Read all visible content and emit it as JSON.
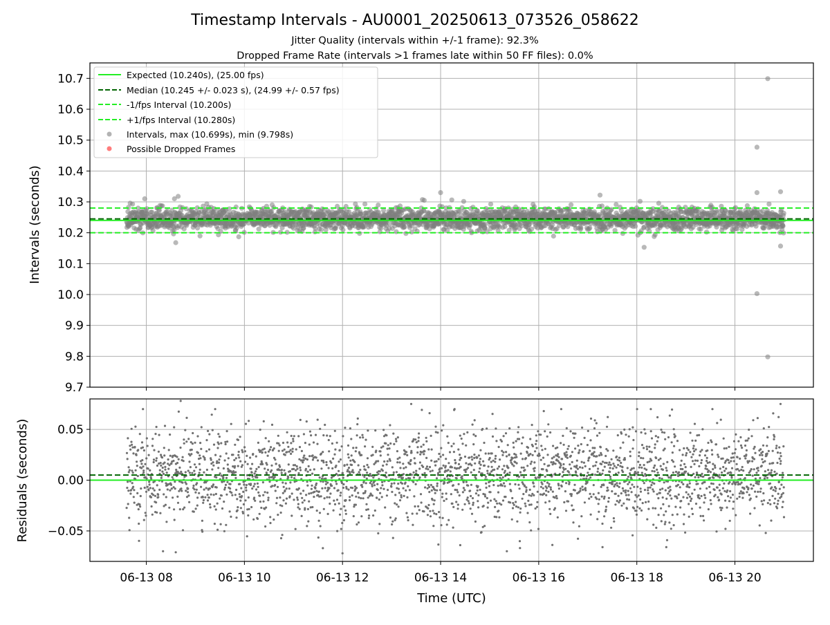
{
  "chart_data": [
    {
      "type": "scatter",
      "title": "Timestamp Intervals - AU0001_20250613_073526_058622",
      "subtitle_lines": [
        "Jitter Quality (intervals within +/-1 frame): 92.3%",
        "Dropped Frame Rate (intervals >1 frames late within 50 FF files): 0.0%"
      ],
      "ylabel": "Intervals (seconds)",
      "ylim": [
        9.7,
        10.75
      ],
      "yticks": [
        "9.7",
        "9.8",
        "9.9",
        "10.0",
        "10.1",
        "10.2",
        "10.3",
        "10.4",
        "10.5",
        "10.6",
        "10.7"
      ],
      "xlim_hours": [
        6.85,
        21.6
      ],
      "data_range_hours": [
        7.6,
        21.0
      ],
      "grid": true,
      "legend_position": "upper-left",
      "reference_lines": [
        {
          "name": "Expected (10.240s), (25.00 fps)",
          "y": 10.24,
          "color": "#22ee22",
          "style": "solid"
        },
        {
          "name": "Median (10.245 +/- 0.023 s), (24.99 +/- 0.57 fps)",
          "y": 10.245,
          "color": "#006400",
          "style": "dashed"
        },
        {
          "name": "-1/fps Interval (10.200s)",
          "y": 10.2,
          "color": "#22ee22",
          "style": "dashed"
        },
        {
          "name": "+1/fps Interval (10.280s)",
          "y": 10.28,
          "color": "#22ee22",
          "style": "dashed"
        }
      ],
      "series": [
        {
          "name": "Intervals, max (10.699s), min (9.798s)",
          "color": "#808080",
          "center": 10.245,
          "spread": 0.023
        },
        {
          "name": "Possible Dropped Frames",
          "color": "#ff4444",
          "values": []
        }
      ],
      "outliers": [
        {
          "x_hours": 20.45,
          "y": 10.477
        },
        {
          "x_hours": 20.45,
          "y": 10.003
        },
        {
          "x_hours": 20.67,
          "y": 10.699
        },
        {
          "x_hours": 20.67,
          "y": 9.798
        },
        {
          "x_hours": 20.45,
          "y": 10.33
        },
        {
          "x_hours": 20.93,
          "y": 10.333
        },
        {
          "x_hours": 20.93,
          "y": 10.157
        },
        {
          "x_hours": 8.65,
          "y": 10.318
        },
        {
          "x_hours": 14.0,
          "y": 10.33
        },
        {
          "x_hours": 17.25,
          "y": 10.322
        },
        {
          "x_hours": 18.15,
          "y": 10.153
        },
        {
          "x_hours": 8.6,
          "y": 10.168
        }
      ]
    },
    {
      "type": "scatter",
      "ylabel": "Residuals (seconds)",
      "xlabel": "Time (UTC)",
      "ylim": [
        -0.08,
        0.08
      ],
      "yticks": [
        "−0.05",
        "0.00",
        "0.05"
      ],
      "ytick_values": [
        -0.05,
        0.0,
        0.05
      ],
      "xlim_hours": [
        6.85,
        21.6
      ],
      "xticks": [
        "06-13 08",
        "06-13 10",
        "06-13 12",
        "06-13 14",
        "06-13 16",
        "06-13 18",
        "06-13 20"
      ],
      "xtick_hours": [
        8,
        10,
        12,
        14,
        16,
        18,
        20
      ],
      "grid": true,
      "reference_lines": [
        {
          "y": 0.0,
          "color": "#22ee22",
          "style": "solid"
        },
        {
          "y": 0.005,
          "color": "#006400",
          "style": "dashed"
        }
      ],
      "series": [
        {
          "color": "#707070",
          "center": 0.005,
          "spread": 0.023
        }
      ],
      "outliers": [
        {
          "x_hours": 8.7,
          "y": 0.078
        },
        {
          "x_hours": 13.4,
          "y": 0.075
        },
        {
          "x_hours": 20.93,
          "y": 0.075
        },
        {
          "x_hours": 12.0,
          "y": -0.072
        },
        {
          "x_hours": 8.6,
          "y": -0.071
        },
        {
          "x_hours": 11.6,
          "y": -0.067
        },
        {
          "x_hours": 18.6,
          "y": -0.066
        },
        {
          "x_hours": 17.3,
          "y": -0.066
        },
        {
          "x_hours": 14.4,
          "y": -0.064
        }
      ]
    }
  ]
}
